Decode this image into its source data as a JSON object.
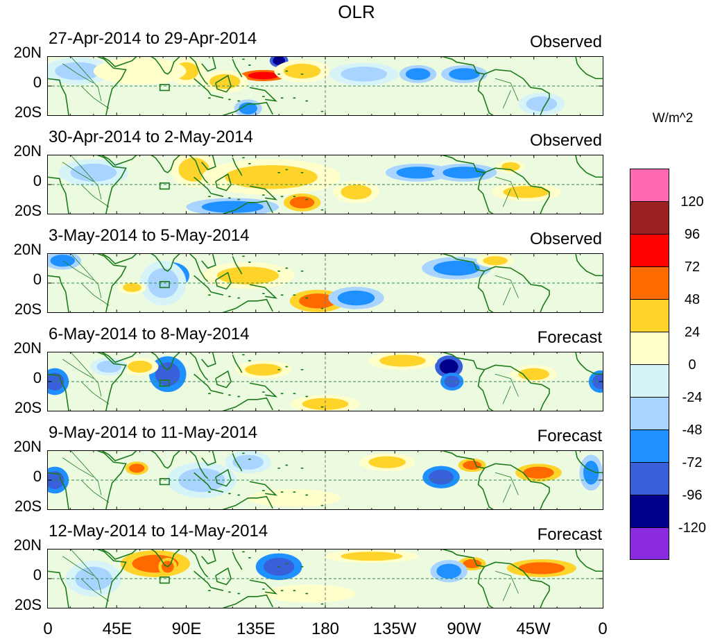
{
  "title": "OLR",
  "unit": "W/m^2",
  "lat_labels": [
    "20N",
    "0",
    "20S"
  ],
  "lon_labels": [
    "0",
    "45E",
    "90E",
    "135E",
    "180",
    "135W",
    "90W",
    "45W",
    "0"
  ],
  "legend": {
    "colors": [
      "#ff69b4",
      "#9b2020",
      "#ff0000",
      "#ff6a00",
      "#ffd42a",
      "#ffffcc",
      "#d6f3f8",
      "#a8d4ff",
      "#1e90ff",
      "#3a5fdb",
      "#00008b",
      "#8a2be2"
    ],
    "labels": [
      "120",
      "96",
      "72",
      "48",
      "24",
      "0",
      "-24",
      "-48",
      "-72",
      "-96",
      "-120"
    ]
  },
  "panels": [
    {
      "dates": "27-Apr-2014 to 29-Apr-2014",
      "kind": "Observed"
    },
    {
      "dates": "30-Apr-2014 to 2-May-2014",
      "kind": "Observed"
    },
    {
      "dates": "3-May-2014 to 5-May-2014",
      "kind": "Observed"
    },
    {
      "dates": "6-May-2014 to 8-May-2014",
      "kind": "Forecast"
    },
    {
      "dates": "9-May-2014 to 11-May-2014",
      "kind": "Forecast"
    },
    {
      "dates": "12-May-2014 to 14-May-2014",
      "kind": "Forecast"
    }
  ],
  "anomalies": [
    [
      {
        "lon": 140,
        "lat": 7,
        "rlon": 10,
        "rlat": 2.5,
        "v": 75
      },
      {
        "lon": 150,
        "lat": 17,
        "rlon": 4,
        "rlat": 3,
        "v": -105
      },
      {
        "lon": 165,
        "lat": 10,
        "rlon": 12,
        "rlat": 5,
        "v": 40
      },
      {
        "lon": 115,
        "lat": 3,
        "rlon": 10,
        "rlat": 5,
        "v": 30
      },
      {
        "lon": 90,
        "lat": 10,
        "rlon": 8,
        "rlat": 6,
        "v": 30
      },
      {
        "lon": 205,
        "lat": 8,
        "rlon": 15,
        "rlat": 5,
        "v": -45
      },
      {
        "lon": 240,
        "lat": 8,
        "rlon": 8,
        "rlat": 4,
        "v": -55
      },
      {
        "lon": 270,
        "lat": 8,
        "rlon": 10,
        "rlat": 4,
        "v": -60
      },
      {
        "lon": 130,
        "lat": -15,
        "rlon": 6,
        "rlat": 4,
        "v": -70
      },
      {
        "lon": 20,
        "lat": 10,
        "rlon": 15,
        "rlat": 6,
        "v": -30
      },
      {
        "lon": 320,
        "lat": -12,
        "rlon": 10,
        "rlat": 5,
        "v": -40
      },
      {
        "lon": 60,
        "lat": 10,
        "rlon": 20,
        "rlat": 6,
        "v": 15
      }
    ],
    [
      {
        "lon": 95,
        "lat": 10,
        "rlon": 10,
        "rlat": 8,
        "v": 35
      },
      {
        "lon": 145,
        "lat": 5,
        "rlon": 30,
        "rlat": 8,
        "v": 30
      },
      {
        "lon": 165,
        "lat": -12,
        "rlon": 8,
        "rlat": 4,
        "v": 50
      },
      {
        "lon": 120,
        "lat": -15,
        "rlon": 20,
        "rlat": 4,
        "v": -55
      },
      {
        "lon": 240,
        "lat": 8,
        "rlon": 14,
        "rlat": 4,
        "v": -50
      },
      {
        "lon": 270,
        "lat": 8,
        "rlon": 14,
        "rlat": 4,
        "v": -50
      },
      {
        "lon": 300,
        "lat": 12,
        "rlon": 6,
        "rlat": 3,
        "v": 30
      },
      {
        "lon": 310,
        "lat": -5,
        "rlon": 15,
        "rlat": 4,
        "v": 25
      },
      {
        "lon": 30,
        "lat": 8,
        "rlon": 15,
        "rlat": 6,
        "v": -30
      },
      {
        "lon": 200,
        "lat": -5,
        "rlon": 10,
        "rlat": 5,
        "v": 25
      }
    ],
    [
      {
        "lon": 80,
        "lat": 5,
        "rlon": 8,
        "rlat": 6,
        "v": -80
      },
      {
        "lon": 75,
        "lat": 0,
        "rlon": 10,
        "rlat": 10,
        "v": -45
      },
      {
        "lon": 130,
        "lat": 5,
        "rlon": 20,
        "rlat": 6,
        "v": 30
      },
      {
        "lon": 175,
        "lat": -12,
        "rlon": 12,
        "rlat": 5,
        "v": 55
      },
      {
        "lon": 200,
        "lat": -10,
        "rlon": 12,
        "rlat": 5,
        "v": -50
      },
      {
        "lon": 265,
        "lat": 10,
        "rlon": 15,
        "rlat": 5,
        "v": -60
      },
      {
        "lon": 10,
        "lat": 15,
        "rlon": 8,
        "rlat": 4,
        "v": -50
      },
      {
        "lon": 55,
        "lat": -3,
        "rlon": 6,
        "rlat": 3,
        "v": 30
      },
      {
        "lon": 290,
        "lat": 15,
        "rlon": 8,
        "rlat": 3,
        "v": 25
      }
    ],
    [
      {
        "lon": 260,
        "lat": 10,
        "rlon": 6,
        "rlat": 5,
        "v": -100
      },
      {
        "lon": 262,
        "lat": 0,
        "rlon": 5,
        "rlat": 4,
        "v": -95
      },
      {
        "lon": 78,
        "lat": 5,
        "rlon": 8,
        "rlat": 8,
        "v": -80
      },
      {
        "lon": 5,
        "lat": 0,
        "rlon": 6,
        "rlat": 6,
        "v": -75
      },
      {
        "lon": 358,
        "lat": 0,
        "rlon": 5,
        "rlat": 5,
        "v": -90
      },
      {
        "lon": 230,
        "lat": 14,
        "rlon": 15,
        "rlat": 4,
        "v": 30
      },
      {
        "lon": 180,
        "lat": -15,
        "rlon": 15,
        "rlat": 4,
        "v": 45
      },
      {
        "lon": 60,
        "lat": 10,
        "rlon": 8,
        "rlat": 4,
        "v": 30
      },
      {
        "lon": 40,
        "lat": 10,
        "rlon": 8,
        "rlat": 4,
        "v": -40
      },
      {
        "lon": 315,
        "lat": 5,
        "rlon": 10,
        "rlat": 4,
        "v": 25
      },
      {
        "lon": 140,
        "lat": 8,
        "rlon": 12,
        "rlat": 4,
        "v": 25
      }
    ],
    [
      {
        "lon": 255,
        "lat": 2,
        "rlon": 8,
        "rlat": 5,
        "v": -80
      },
      {
        "lon": 5,
        "lat": 0,
        "rlon": 6,
        "rlat": 6,
        "v": -85
      },
      {
        "lon": 58,
        "lat": 8,
        "rlon": 5,
        "rlat": 3,
        "v": 55
      },
      {
        "lon": 275,
        "lat": 10,
        "rlon": 6,
        "rlat": 3,
        "v": 55
      },
      {
        "lon": 318,
        "lat": 5,
        "rlon": 10,
        "rlat": 4,
        "v": 60
      },
      {
        "lon": 220,
        "lat": 12,
        "rlon": 12,
        "rlat": 4,
        "v": 30
      },
      {
        "lon": 160,
        "lat": -12,
        "rlon": 20,
        "rlat": 4,
        "v": 20
      },
      {
        "lon": 100,
        "lat": 0,
        "rlon": 15,
        "rlat": 8,
        "v": -30
      },
      {
        "lon": 130,
        "lat": 12,
        "rlon": 10,
        "rlat": 5,
        "v": -30
      },
      {
        "lon": 352,
        "lat": 5,
        "rlon": 5,
        "rlat": 8,
        "v": -55
      }
    ],
    [
      {
        "lon": 150,
        "lat": 8,
        "rlon": 10,
        "rlat": 6,
        "v": -85
      },
      {
        "lon": 70,
        "lat": 10,
        "rlon": 15,
        "rlat": 6,
        "v": 50
      },
      {
        "lon": 78,
        "lat": 8,
        "rlon": 4,
        "rlat": 4,
        "v": 65
      },
      {
        "lon": 275,
        "lat": 10,
        "rlon": 6,
        "rlat": 3,
        "v": 60
      },
      {
        "lon": 320,
        "lat": 7,
        "rlon": 15,
        "rlat": 4,
        "v": 55
      },
      {
        "lon": 210,
        "lat": 15,
        "rlon": 20,
        "rlat": 3,
        "v": 25
      },
      {
        "lon": 30,
        "lat": 0,
        "rlon": 12,
        "rlat": 8,
        "v": -30
      },
      {
        "lon": 260,
        "lat": 5,
        "rlon": 8,
        "rlat": 5,
        "v": -50
      },
      {
        "lon": 170,
        "lat": -10,
        "rlon": 20,
        "rlat": 4,
        "v": 20
      }
    ]
  ]
}
